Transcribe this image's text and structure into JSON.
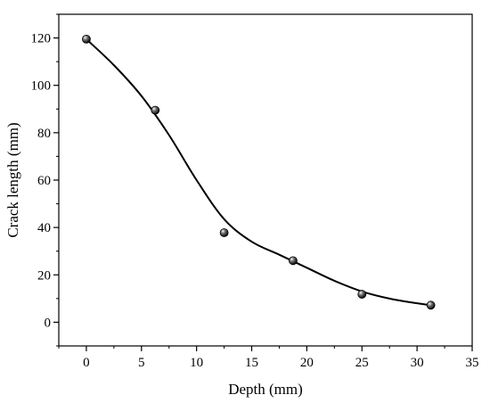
{
  "chart_data": {
    "type": "scatter",
    "title": "",
    "xlabel": "Depth (mm)",
    "ylabel": "Crack length (mm)",
    "xlim": [
      -2.5,
      35
    ],
    "ylim": [
      -10,
      130
    ],
    "xticks": [
      0,
      5,
      10,
      15,
      20,
      25,
      30,
      35
    ],
    "yticks": [
      0,
      20,
      40,
      60,
      80,
      100,
      120
    ],
    "grid": false,
    "legend": "none",
    "series": [
      {
        "marker": "sphere",
        "color": "#000000",
        "x": [
          0,
          6.25,
          12.5,
          18.75,
          25,
          31.25
        ],
        "y": [
          119.5,
          89.5,
          37.8,
          26,
          11.8,
          7.2
        ]
      }
    ],
    "fit_curve": {
      "color": "#000000",
      "x": [
        0,
        2.5,
        5,
        7.5,
        10,
        12.5,
        15,
        17.5,
        20,
        22.5,
        25,
        27.5,
        30,
        31.25
      ],
      "y": [
        119.5,
        108.5,
        95.5,
        79,
        60,
        43.5,
        34,
        28.5,
        23,
        17.5,
        13,
        10,
        8,
        7.2
      ]
    }
  }
}
